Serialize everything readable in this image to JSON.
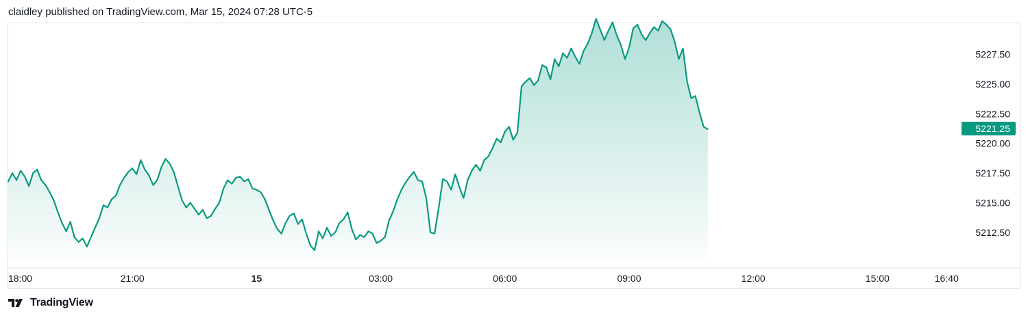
{
  "header": {
    "text": "claidley published on TradingView.com, Mar 15, 2024 07:28 UTC-5"
  },
  "footer": {
    "brand": "TradingView",
    "logo_icon": "tradingview-logo-icon"
  },
  "colors": {
    "line": "#089981",
    "fill": "#089981",
    "label_bg": "#089981",
    "axis_border": "#e0e3eb"
  },
  "chart_data": {
    "type": "area",
    "title": "",
    "xlabel": "",
    "ylabel": "",
    "x_axis": {
      "tick_labels": [
        {
          "label": "18:00",
          "hour": 0,
          "bold": false
        },
        {
          "label": "21:00",
          "hour": 3,
          "bold": false
        },
        {
          "label": "15",
          "hour": 6,
          "bold": true
        },
        {
          "label": "03:00",
          "hour": 9,
          "bold": false
        },
        {
          "label": "06:00",
          "hour": 12,
          "bold": false
        },
        {
          "label": "09:00",
          "hour": 15,
          "bold": false
        },
        {
          "label": "12:00",
          "hour": 18,
          "bold": false
        },
        {
          "label": "15:00",
          "hour": 21,
          "bold": false
        },
        {
          "label": "16:40",
          "hour": 22.67,
          "bold": false
        }
      ],
      "range_hours": [
        0,
        22.67
      ]
    },
    "y_axis": {
      "tick_labels": [
        "5212.50",
        "5215.00",
        "5217.50",
        "5220.00",
        "5222.50",
        "5225.00",
        "5227.50"
      ],
      "range": [
        5210.9,
        5230.7
      ],
      "position": "right"
    },
    "last_value": "5221.25",
    "grid": false,
    "series": [
      {
        "points": [
          [
            0.0,
            5216.8
          ],
          [
            0.1,
            5217.5
          ],
          [
            0.2,
            5216.9
          ],
          [
            0.3,
            5217.7
          ],
          [
            0.4,
            5217.2
          ],
          [
            0.5,
            5216.4
          ],
          [
            0.6,
            5217.5
          ],
          [
            0.7,
            5217.8
          ],
          [
            0.8,
            5216.9
          ],
          [
            0.9,
            5216.5
          ],
          [
            1.0,
            5215.9
          ],
          [
            1.1,
            5215.2
          ],
          [
            1.2,
            5214.2
          ],
          [
            1.3,
            5213.3
          ],
          [
            1.4,
            5212.6
          ],
          [
            1.5,
            5213.4
          ],
          [
            1.6,
            5212.1
          ],
          [
            1.7,
            5211.7
          ],
          [
            1.8,
            5212.0
          ],
          [
            1.9,
            5211.3
          ],
          [
            2.0,
            5212.1
          ],
          [
            2.1,
            5212.9
          ],
          [
            2.2,
            5213.7
          ],
          [
            2.3,
            5214.8
          ],
          [
            2.4,
            5214.6
          ],
          [
            2.5,
            5215.3
          ],
          [
            2.6,
            5215.6
          ],
          [
            2.7,
            5216.5
          ],
          [
            2.8,
            5217.1
          ],
          [
            2.9,
            5217.6
          ],
          [
            3.0,
            5217.9
          ],
          [
            3.1,
            5217.4
          ],
          [
            3.2,
            5218.6
          ],
          [
            3.3,
            5217.8
          ],
          [
            3.4,
            5217.3
          ],
          [
            3.5,
            5216.5
          ],
          [
            3.6,
            5216.9
          ],
          [
            3.7,
            5218.0
          ],
          [
            3.8,
            5218.7
          ],
          [
            3.9,
            5218.3
          ],
          [
            4.0,
            5217.6
          ],
          [
            4.1,
            5216.4
          ],
          [
            4.2,
            5215.2
          ],
          [
            4.3,
            5214.6
          ],
          [
            4.4,
            5215.0
          ],
          [
            4.5,
            5214.5
          ],
          [
            4.6,
            5214.0
          ],
          [
            4.7,
            5214.4
          ],
          [
            4.8,
            5213.7
          ],
          [
            4.9,
            5213.9
          ],
          [
            5.0,
            5214.5
          ],
          [
            5.1,
            5215.0
          ],
          [
            5.2,
            5216.2
          ],
          [
            5.3,
            5216.9
          ],
          [
            5.4,
            5216.6
          ],
          [
            5.5,
            5217.1
          ],
          [
            5.6,
            5217.2
          ],
          [
            5.7,
            5216.8
          ],
          [
            5.8,
            5217.0
          ],
          [
            5.9,
            5216.2
          ],
          [
            6.0,
            5216.1
          ],
          [
            6.1,
            5215.9
          ],
          [
            6.2,
            5215.3
          ],
          [
            6.3,
            5214.4
          ],
          [
            6.4,
            5213.5
          ],
          [
            6.5,
            5212.8
          ],
          [
            6.6,
            5212.4
          ],
          [
            6.7,
            5213.3
          ],
          [
            6.8,
            5213.9
          ],
          [
            6.9,
            5214.1
          ],
          [
            7.0,
            5213.2
          ],
          [
            7.1,
            5213.6
          ],
          [
            7.2,
            5212.4
          ],
          [
            7.3,
            5211.4
          ],
          [
            7.4,
            5211.0
          ],
          [
            7.5,
            5212.6
          ],
          [
            7.6,
            5212.0
          ],
          [
            7.7,
            5212.9
          ],
          [
            7.8,
            5212.2
          ],
          [
            7.9,
            5212.5
          ],
          [
            8.0,
            5213.3
          ],
          [
            8.1,
            5213.6
          ],
          [
            8.2,
            5214.2
          ],
          [
            8.3,
            5212.8
          ],
          [
            8.4,
            5211.9
          ],
          [
            8.5,
            5212.3
          ],
          [
            8.6,
            5212.1
          ],
          [
            8.7,
            5212.6
          ],
          [
            8.8,
            5212.4
          ],
          [
            8.9,
            5211.6
          ],
          [
            9.0,
            5211.8
          ],
          [
            9.1,
            5212.1
          ],
          [
            9.2,
            5213.5
          ],
          [
            9.3,
            5214.3
          ],
          [
            9.4,
            5215.3
          ],
          [
            9.5,
            5216.1
          ],
          [
            9.6,
            5216.7
          ],
          [
            9.7,
            5217.2
          ],
          [
            9.8,
            5217.6
          ],
          [
            9.9,
            5216.9
          ],
          [
            10.0,
            5216.8
          ],
          [
            10.1,
            5215.4
          ],
          [
            10.2,
            5212.5
          ],
          [
            10.3,
            5212.4
          ],
          [
            10.4,
            5214.6
          ],
          [
            10.5,
            5217.0
          ],
          [
            10.6,
            5216.8
          ],
          [
            10.7,
            5216.1
          ],
          [
            10.8,
            5217.4
          ],
          [
            10.9,
            5216.3
          ],
          [
            11.0,
            5215.4
          ],
          [
            11.1,
            5216.9
          ],
          [
            11.2,
            5217.7
          ],
          [
            11.3,
            5218.2
          ],
          [
            11.4,
            5217.7
          ],
          [
            11.5,
            5218.6
          ],
          [
            11.6,
            5218.9
          ],
          [
            11.7,
            5219.6
          ],
          [
            11.8,
            5220.4
          ],
          [
            11.9,
            5220.1
          ],
          [
            12.0,
            5221.0
          ],
          [
            12.1,
            5221.4
          ],
          [
            12.2,
            5220.3
          ],
          [
            12.3,
            5220.9
          ],
          [
            12.4,
            5224.8
          ],
          [
            12.5,
            5225.2
          ],
          [
            12.6,
            5225.5
          ],
          [
            12.7,
            5224.9
          ],
          [
            12.8,
            5225.3
          ],
          [
            12.9,
            5226.6
          ],
          [
            13.0,
            5226.4
          ],
          [
            13.1,
            5225.4
          ],
          [
            13.2,
            5227.1
          ],
          [
            13.3,
            5226.5
          ],
          [
            13.4,
            5227.6
          ],
          [
            13.5,
            5227.2
          ],
          [
            13.6,
            5228.0
          ],
          [
            13.7,
            5227.3
          ],
          [
            13.8,
            5226.7
          ],
          [
            13.9,
            5227.8
          ],
          [
            14.0,
            5228.4
          ],
          [
            14.1,
            5229.3
          ],
          [
            14.2,
            5230.5
          ],
          [
            14.3,
            5229.6
          ],
          [
            14.4,
            5228.7
          ],
          [
            14.5,
            5229.5
          ],
          [
            14.6,
            5230.2
          ],
          [
            14.7,
            5229.1
          ],
          [
            14.8,
            5228.3
          ],
          [
            14.9,
            5227.1
          ],
          [
            15.0,
            5228.1
          ],
          [
            15.1,
            5229.7
          ],
          [
            15.2,
            5230.0
          ],
          [
            15.3,
            5229.2
          ],
          [
            15.4,
            5228.7
          ],
          [
            15.5,
            5229.3
          ],
          [
            15.6,
            5229.8
          ],
          [
            15.7,
            5229.5
          ],
          [
            15.8,
            5230.3
          ],
          [
            15.9,
            5230.0
          ],
          [
            16.0,
            5229.6
          ],
          [
            16.1,
            5228.6
          ],
          [
            16.2,
            5227.1
          ],
          [
            16.3,
            5228.0
          ],
          [
            16.4,
            5225.2
          ],
          [
            16.5,
            5223.8
          ],
          [
            16.6,
            5224.0
          ],
          [
            16.7,
            5222.6
          ],
          [
            16.8,
            5221.4
          ],
          [
            16.9,
            5221.2
          ]
        ]
      }
    ]
  }
}
